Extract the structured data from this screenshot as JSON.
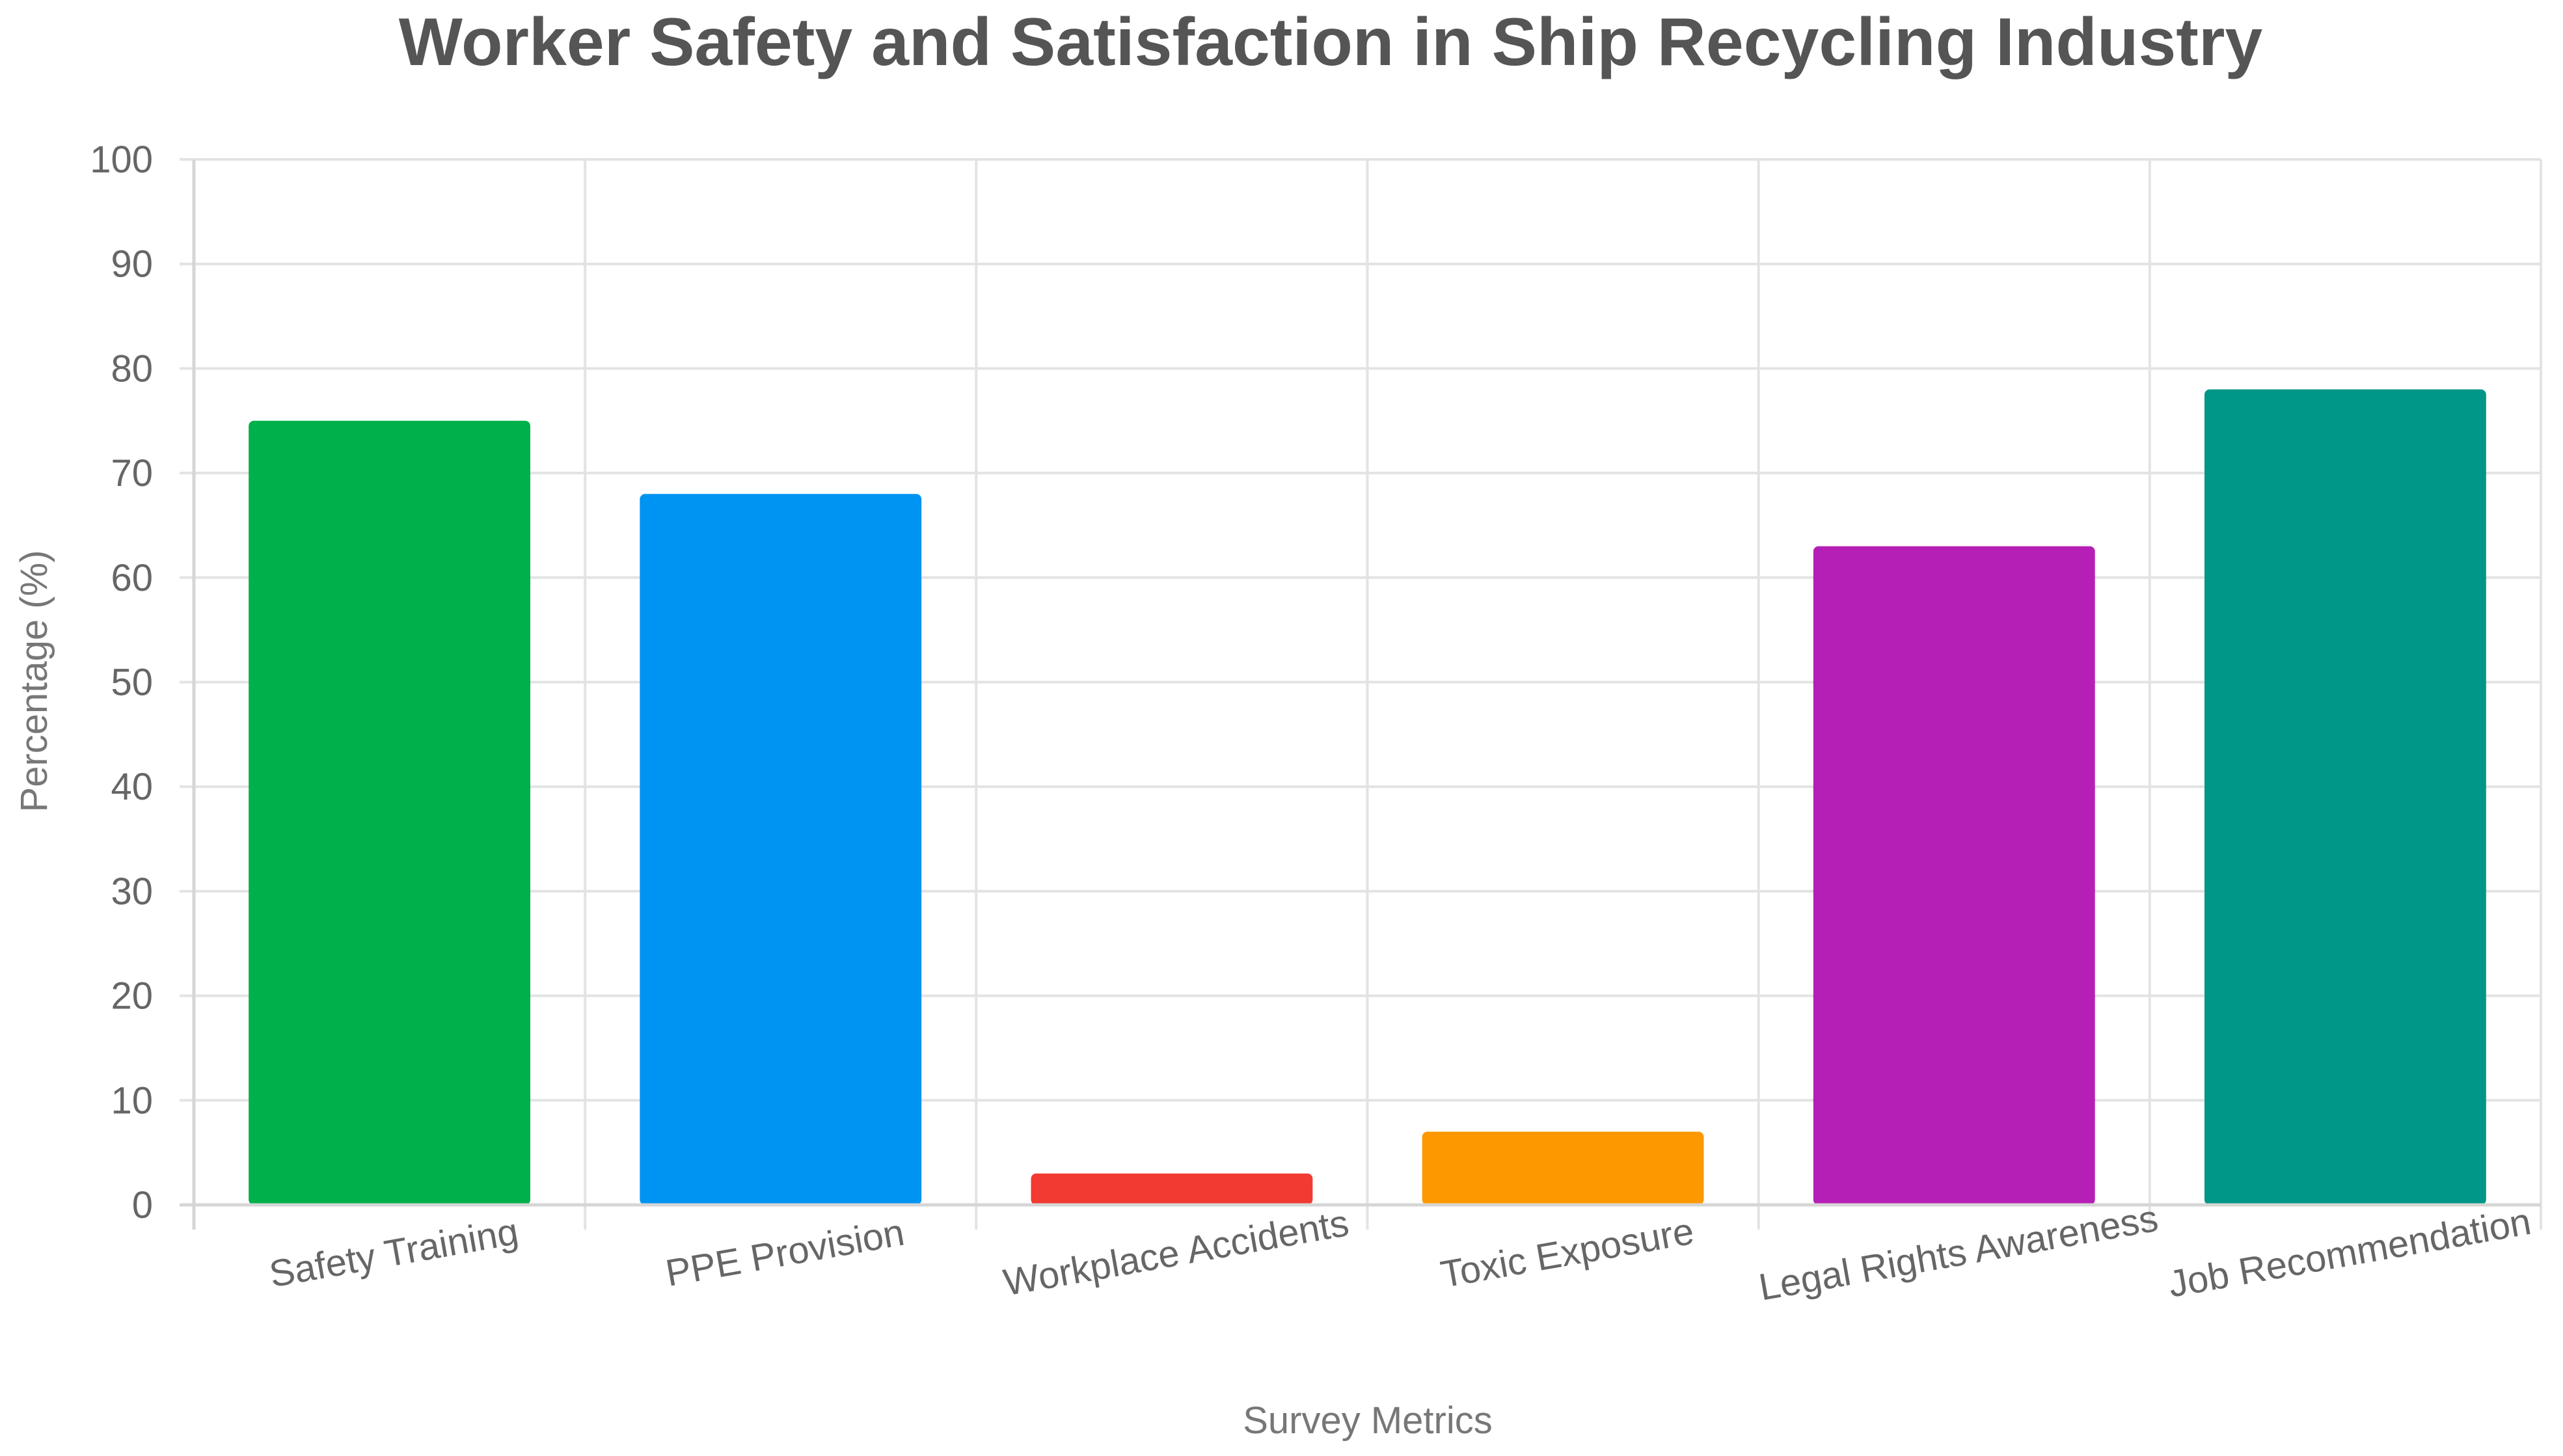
{
  "chart_data": {
    "type": "bar",
    "title": "Worker Safety and Satisfaction in Ship Recycling Industry",
    "xlabel": "Survey Metrics",
    "ylabel": "Percentage (%)",
    "ylim": [
      0,
      100
    ],
    "yticks": [
      "0",
      "10",
      "20",
      "30",
      "40",
      "50",
      "60",
      "70",
      "80",
      "90",
      "100"
    ],
    "categories": [
      "Safety Training",
      "PPE Provision",
      "Workplace Accidents",
      "Toxic Exposure",
      "Legal Rights Awareness",
      "Job Recommendation"
    ],
    "values": [
      75,
      68,
      3,
      7,
      63,
      78
    ],
    "colors": [
      "#00b04a",
      "#0094f2",
      "#f23a32",
      "#fe9800",
      "#b61fb6",
      "#009688"
    ],
    "grid": true,
    "legend": "none"
  }
}
